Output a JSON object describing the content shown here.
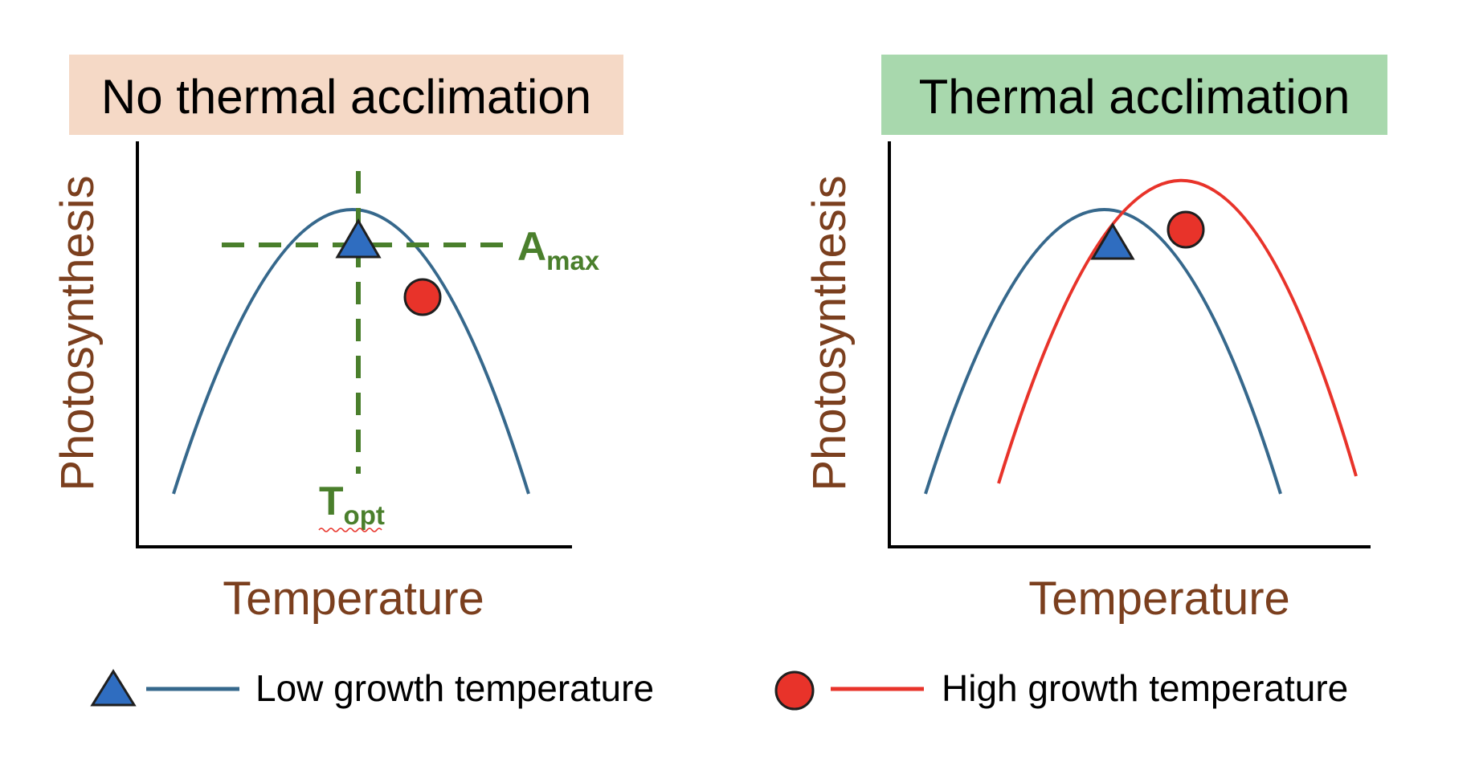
{
  "colors": {
    "low": "#36688c",
    "high": "#e8332a",
    "guide": "#4a7f2c",
    "axis_label": "#7b3f1e",
    "title_left_bg": "#f5d9c6",
    "title_right_bg": "#a8d8ad",
    "marker_low": "#2f6dc0",
    "marker_edge": "#1f1f1f"
  },
  "panels": {
    "left": {
      "title": "No thermal acclimation",
      "ylabel": "Photosynthesis",
      "xlabel": "Temperature",
      "amax_main": "A",
      "amax_sub": "max",
      "topt_main": "T",
      "topt_sub": "opt"
    },
    "right": {
      "title": "Thermal acclimation",
      "ylabel": "Photosynthesis",
      "xlabel": "Temperature"
    }
  },
  "legend": {
    "low_label": "Low growth temperature",
    "high_label": "High growth temperature",
    "low_marker": "triangle",
    "high_marker": "circle"
  }
}
